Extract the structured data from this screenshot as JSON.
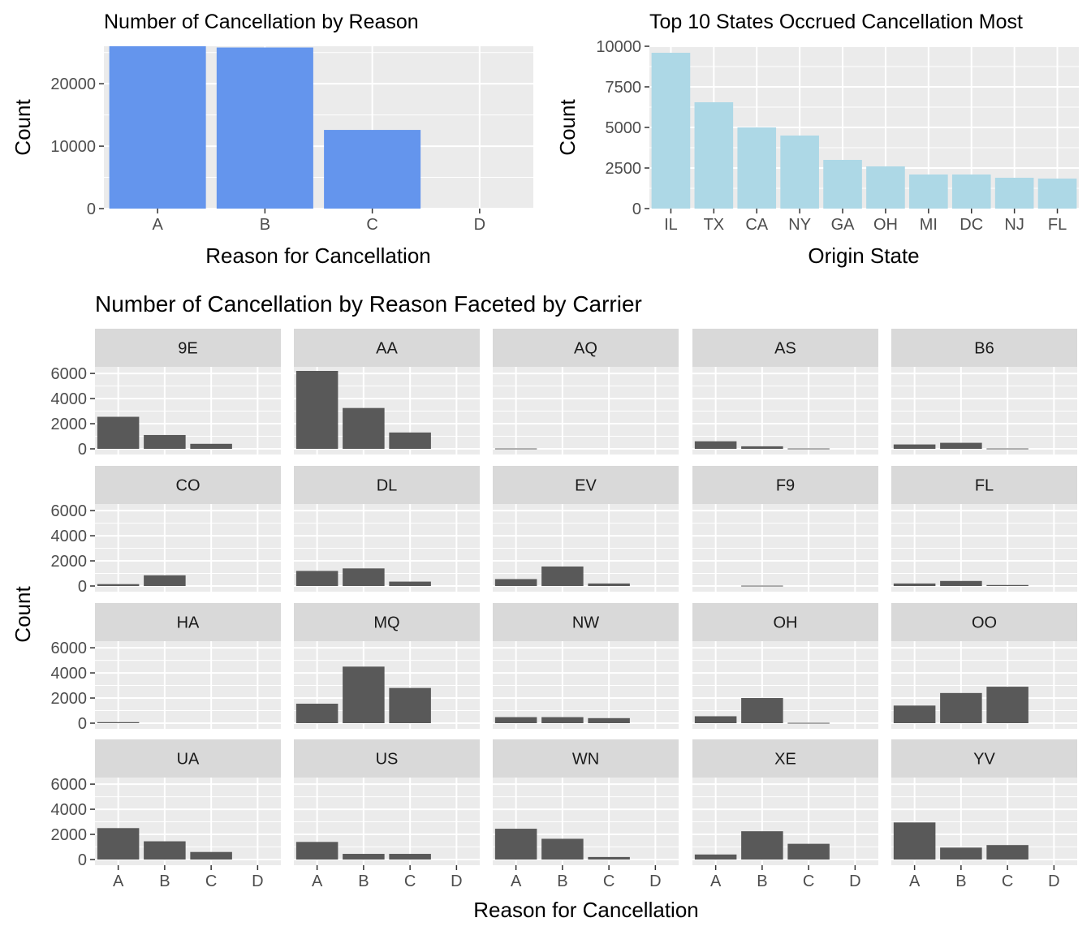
{
  "chart_data": [
    {
      "type": "bar",
      "title": "Number of Cancellation by Reason",
      "xlabel": "Reason for Cancellation",
      "ylabel": "Count",
      "categories": [
        "A",
        "B",
        "C",
        "D"
      ],
      "values": [
        26000,
        25800,
        12600,
        0
      ],
      "ylim": [
        0,
        26000
      ],
      "yticks": [
        0,
        10000,
        20000
      ],
      "bar_color": "#6495ED",
      "panel_background": "#EBEBEB",
      "grid": true
    },
    {
      "type": "bar",
      "title": "Top 10 States Occrued Cancellation Most",
      "xlabel": "Origin State",
      "ylabel": "Count",
      "categories": [
        "IL",
        "TX",
        "CA",
        "NY",
        "GA",
        "OH",
        "MI",
        "DC",
        "NJ",
        "FL"
      ],
      "values": [
        9600,
        6550,
        5000,
        4500,
        3000,
        2600,
        2100,
        2100,
        1900,
        1850
      ],
      "ylim": [
        0,
        10000
      ],
      "yticks": [
        0,
        2500,
        5000,
        7500,
        10000
      ],
      "bar_color": "#ADD8E6",
      "panel_background": "#EBEBEB",
      "grid": true
    },
    {
      "type": "bar",
      "title": "Number of Cancellation by Reason Faceted by Carrier",
      "xlabel": "Reason for Cancellation",
      "ylabel": "Count",
      "categories": [
        "A",
        "B",
        "C",
        "D"
      ],
      "ylim": [
        0,
        6200
      ],
      "yticks": [
        0,
        2000,
        4000,
        6000
      ],
      "bar_color": "#595959",
      "strip_background": "#D9D9D9",
      "panel_background": "#EBEBEB",
      "facets": [
        {
          "name": "9E",
          "values": [
            2550,
            1100,
            400,
            0
          ]
        },
        {
          "name": "AA",
          "values": [
            6200,
            3250,
            1300,
            0
          ]
        },
        {
          "name": "AQ",
          "values": [
            30,
            0,
            0,
            0
          ]
        },
        {
          "name": "AS",
          "values": [
            600,
            200,
            30,
            0
          ]
        },
        {
          "name": "B6",
          "values": [
            350,
            480,
            30,
            0
          ]
        },
        {
          "name": "CO",
          "values": [
            150,
            850,
            0,
            0
          ]
        },
        {
          "name": "DL",
          "values": [
            1200,
            1400,
            350,
            0
          ]
        },
        {
          "name": "EV",
          "values": [
            550,
            1550,
            200,
            0
          ]
        },
        {
          "name": "F9",
          "values": [
            0,
            30,
            0,
            0
          ]
        },
        {
          "name": "FL",
          "values": [
            200,
            400,
            80,
            0
          ]
        },
        {
          "name": "HA",
          "values": [
            80,
            0,
            0,
            0
          ]
        },
        {
          "name": "MQ",
          "values": [
            1550,
            4500,
            2800,
            0
          ]
        },
        {
          "name": "NW",
          "values": [
            480,
            480,
            400,
            0
          ]
        },
        {
          "name": "OH",
          "values": [
            550,
            2000,
            30,
            0
          ]
        },
        {
          "name": "OO",
          "values": [
            1400,
            2400,
            2900,
            0
          ]
        },
        {
          "name": "UA",
          "values": [
            2500,
            1450,
            600,
            0
          ]
        },
        {
          "name": "US",
          "values": [
            1400,
            450,
            450,
            0
          ]
        },
        {
          "name": "WN",
          "values": [
            2450,
            1650,
            200,
            0
          ]
        },
        {
          "name": "XE",
          "values": [
            400,
            2250,
            1250,
            0
          ]
        },
        {
          "name": "YV",
          "values": [
            2950,
            950,
            1150,
            0
          ]
        }
      ]
    }
  ]
}
